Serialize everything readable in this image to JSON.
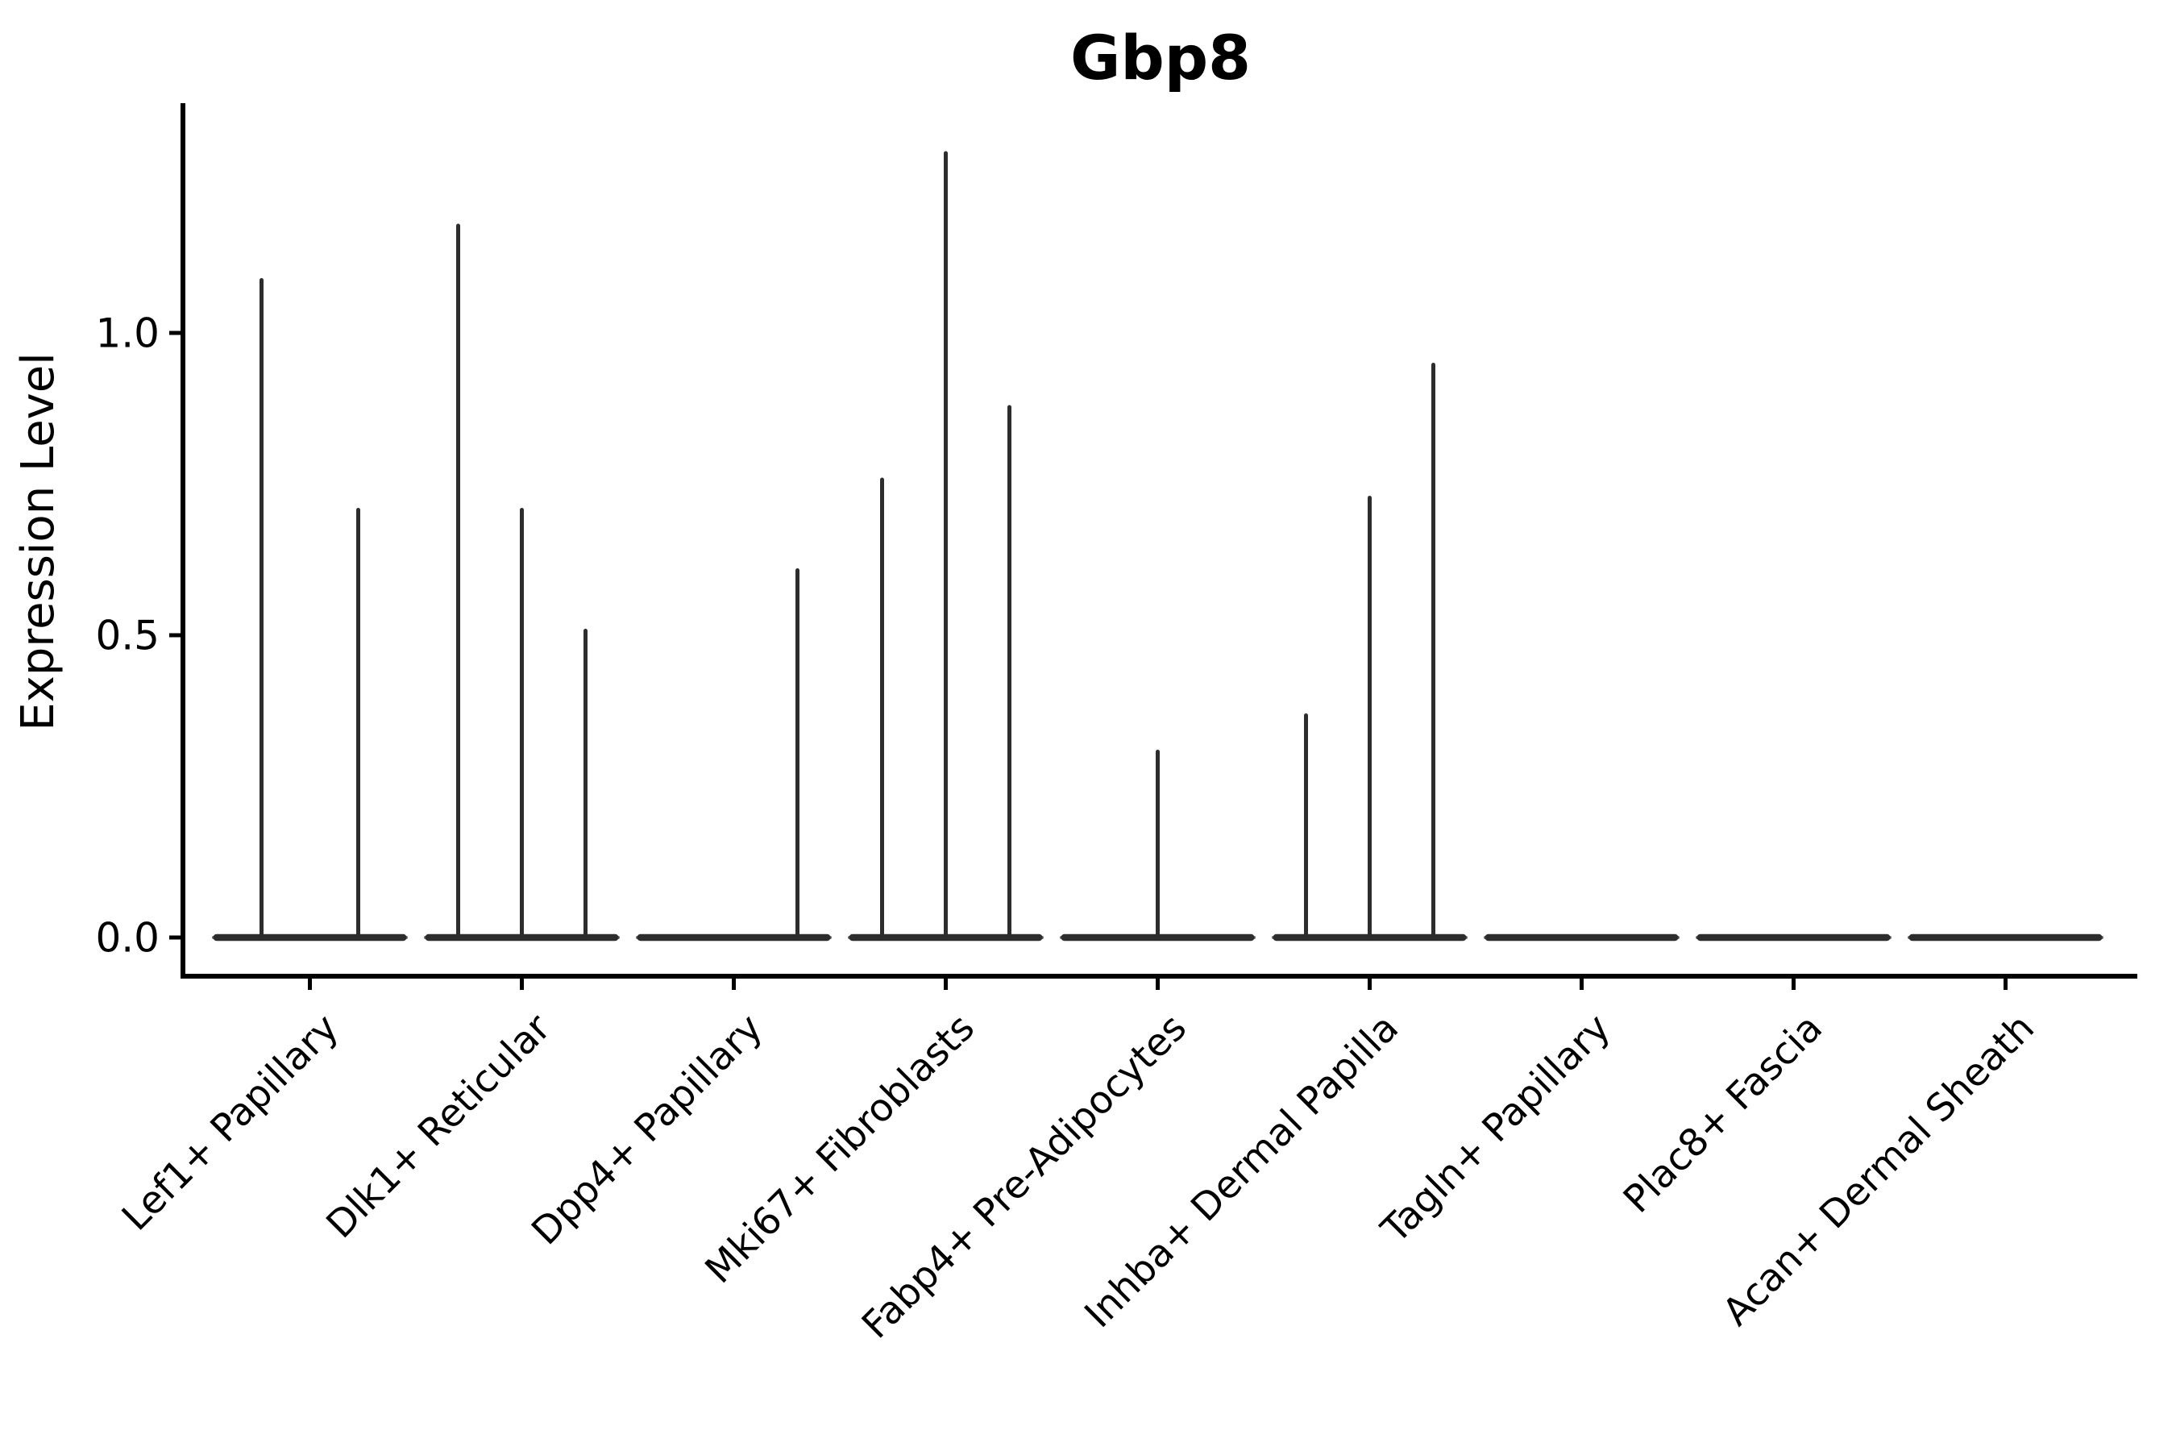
{
  "title": "Gbp8",
  "chart_data": {
    "type": "violin",
    "title": "Gbp8",
    "ylabel": "Expression Level",
    "xlabel": "",
    "yticks": [
      0.0,
      0.5,
      1.0
    ],
    "ylim": [
      -0.06,
      1.38
    ],
    "grid": false,
    "legend": "none",
    "background": "#ffffff",
    "axis_color": "#000000",
    "violin_color": "#2d2d2d",
    "note": "Each category shows dodged sub-violins; each sub-violin is flat at 0 with a thin spike up to its maximum expression value. 0 = fully flat violin (no spike).",
    "categories": [
      "Lef1+ Papillary",
      "Dlk1+ Reticular",
      "Dpp4+ Papillary",
      "Mki67+ Fibroblasts",
      "Fabp4+ Pre-Adipocytes",
      "Inhba+ Dermal Papilla",
      "Tagln+ Papillary",
      "Plac8+ Fascia",
      "Acan+ Dermal Sheath"
    ],
    "groups": [
      {
        "category": "Lef1+ Papillary",
        "spike_maxima": [
          1.09,
          0.71
        ]
      },
      {
        "category": "Dlk1+ Reticular",
        "spike_maxima": [
          1.18,
          0.71,
          0.51
        ]
      },
      {
        "category": "Dpp4+ Papillary",
        "spike_maxima": [
          0,
          0,
          0.61
        ]
      },
      {
        "category": "Mki67+ Fibroblasts",
        "spike_maxima": [
          0.76,
          1.3,
          0.88
        ]
      },
      {
        "category": "Fabp4+ Pre-Adipocytes",
        "spike_maxima": [
          0,
          0.31,
          0
        ]
      },
      {
        "category": "Inhba+ Dermal Papilla",
        "spike_maxima": [
          0.37,
          0.73,
          0.95
        ]
      },
      {
        "category": "Tagln+ Papillary",
        "spike_maxima": [
          0,
          0,
          0
        ]
      },
      {
        "category": "Plac8+ Fascia",
        "spike_maxima": [
          0,
          0,
          0
        ]
      },
      {
        "category": "Acan+ Dermal Sheath",
        "spike_maxima": [
          0,
          0,
          0
        ]
      }
    ]
  }
}
